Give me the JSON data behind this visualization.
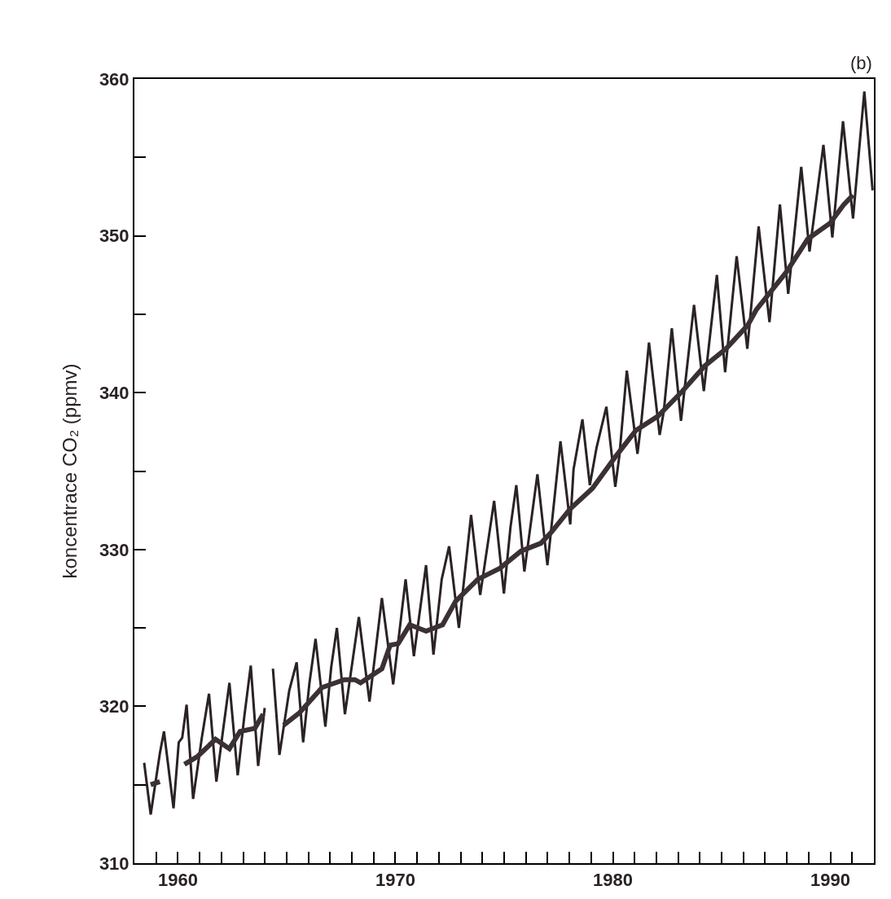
{
  "chart_data": {
    "type": "line",
    "ylabel": "koncentrace CO₂ (ppmv)",
    "annotations": [
      "(b)"
    ],
    "xlim": [
      1958,
      1992
    ],
    "ylim": [
      310,
      360
    ],
    "xticks": [
      {
        "value": 1959,
        "label": null
      },
      1960,
      {
        "value": 1961,
        "label": null
      },
      {
        "value": 1962,
        "label": null
      },
      {
        "value": 1963,
        "label": null
      },
      {
        "value": 1964,
        "label": null
      },
      {
        "value": 1965,
        "label": null
      },
      {
        "value": 1966,
        "label": null
      },
      {
        "value": 1967,
        "label": null
      },
      {
        "value": 1968,
        "label": null
      },
      {
        "value": 1969,
        "label": null
      },
      1970,
      {
        "value": 1971,
        "label": null
      },
      {
        "value": 1972,
        "label": null
      },
      {
        "value": 1973,
        "label": null
      },
      {
        "value": 1974,
        "label": null
      },
      {
        "value": 1975,
        "label": null
      },
      {
        "value": 1976,
        "label": null
      },
      {
        "value": 1977,
        "label": null
      },
      {
        "value": 1978,
        "label": null
      },
      {
        "value": 1979,
        "label": null
      },
      1980,
      {
        "value": 1981,
        "label": null
      },
      {
        "value": 1982,
        "label": null
      },
      {
        "value": 1983,
        "label": null
      },
      {
        "value": 1984,
        "label": null
      },
      {
        "value": 1985,
        "label": null
      },
      {
        "value": 1986,
        "label": null
      },
      {
        "value": 1987,
        "label": null
      },
      {
        "value": 1988,
        "label": null
      },
      {
        "value": 1989,
        "label": null
      },
      1990,
      {
        "value": 1991,
        "label": null
      }
    ],
    "yticks": [
      310,
      {
        "value": 315,
        "label": null
      },
      320,
      {
        "value": 325,
        "label": null
      },
      330,
      {
        "value": 335,
        "label": null
      },
      340,
      {
        "value": 345,
        "label": null
      },
      350,
      {
        "value": 355,
        "label": null
      },
      360
    ],
    "grid": false,
    "marker": "none",
    "line_style": "solid",
    "series": [
      {
        "color": "#2a2224",
        "x": [
          1958.45,
          1958.75,
          1959.17,
          1959.36,
          1959.8,
          1960.04,
          1960.2,
          1960.4,
          1960.7,
          1961.1,
          1961.43,
          1961.77,
          1962.07,
          1962.37,
          1962.75,
          1963.05,
          1963.35,
          1963.69,
          1963.99,
          1964.2,
          1964.37,
          1964.67,
          1965.12,
          1965.46,
          1965.76,
          1966.05,
          1966.33,
          1966.78,
          1967.05,
          1967.31,
          1967.68,
          1968.32,
          1968.81,
          1969.38,
          1969.9,
          1970.47,
          1970.85,
          1971.07,
          1971.41,
          1971.75,
          1972.13,
          1972.47,
          1972.92,
          1973.48,
          1973.9,
          1974.54,
          1974.99,
          1975.29,
          1975.56,
          1975.93,
          1976.53,
          1976.99,
          1977.59,
          1978.04,
          1978.19,
          1978.6,
          1978.94,
          1979.25,
          1979.7,
          1980.11,
          1980.3,
          1980.64,
          1981.13,
          1981.32,
          1981.66,
          1982.15,
          1982.34,
          1982.71,
          1983.13,
          1983.31,
          1983.73,
          1984.18,
          1984.78,
          1985.16,
          1985.69,
          1986.18,
          1986.7,
          1987.2,
          1987.68,
          1988.06,
          1988.66,
          1989.04,
          1989.68,
          1990.09,
          1990.58,
          1991.04,
          1991.56,
          1991.94
        ],
        "values": [
          316.4,
          313.1,
          317.0,
          318.4,
          313.5,
          317.7,
          318.0,
          320.1,
          314.1,
          318.0,
          320.8,
          315.2,
          318.4,
          321.5,
          315.6,
          319.3,
          322.6,
          316.2,
          319.9,
          null,
          322.4,
          316.9,
          321.0,
          322.8,
          317.7,
          321.5,
          324.3,
          318.7,
          322.5,
          325.0,
          319.5,
          325.7,
          320.3,
          326.9,
          321.4,
          328.1,
          323.2,
          325.5,
          329.0,
          323.3,
          328.1,
          330.2,
          325.0,
          332.2,
          327.1,
          333.1,
          327.2,
          331.4,
          334.1,
          328.6,
          334.8,
          329.0,
          336.9,
          331.6,
          335.1,
          338.3,
          334.1,
          336.5,
          339.1,
          334.0,
          336.0,
          341.4,
          336.1,
          338.3,
          343.2,
          337.3,
          338.8,
          344.1,
          338.2,
          340.4,
          345.6,
          340.1,
          347.5,
          341.3,
          348.7,
          342.8,
          350.6,
          344.5,
          352.0,
          346.3,
          354.4,
          349.0,
          355.8,
          349.9,
          357.3,
          351.1,
          359.2,
          352.9
        ]
      },
      {
        "color": "#3b3133",
        "x": [
          1958.75,
          1959.17,
          1959.5,
          1960.3,
          1960.9,
          1961.73,
          1962.37,
          1962.86,
          1963.54,
          1963.92,
          1964.4,
          1964.86,
          1965.6,
          1966.63,
          1967.65,
          1968.14,
          1968.4,
          1969.38,
          1969.76,
          1970.13,
          1970.66,
          1971.41,
          1972.17,
          1972.77,
          1973.79,
          1974.8,
          1975.78,
          1976.69,
          1977.17,
          1978.04,
          1979.06,
          1980.11,
          1981.06,
          1982.07,
          1983.2,
          1984.22,
          1985.2,
          1986.2,
          1986.6,
          1987.98,
          1988.96,
          1989.98,
          1990.62,
          1991.04
        ],
        "values": [
          315.0,
          315.2,
          null,
          316.3,
          316.8,
          317.9,
          317.3,
          318.4,
          318.6,
          319.5,
          null,
          318.8,
          319.6,
          321.2,
          321.7,
          321.7,
          321.5,
          322.4,
          323.9,
          324.0,
          325.2,
          324.8,
          325.2,
          326.7,
          328.1,
          328.8,
          329.9,
          330.4,
          331.1,
          332.6,
          333.9,
          335.9,
          337.6,
          338.5,
          340.1,
          341.7,
          342.8,
          344.3,
          345.3,
          347.7,
          349.8,
          350.8,
          352.0,
          352.6
        ]
      }
    ]
  }
}
